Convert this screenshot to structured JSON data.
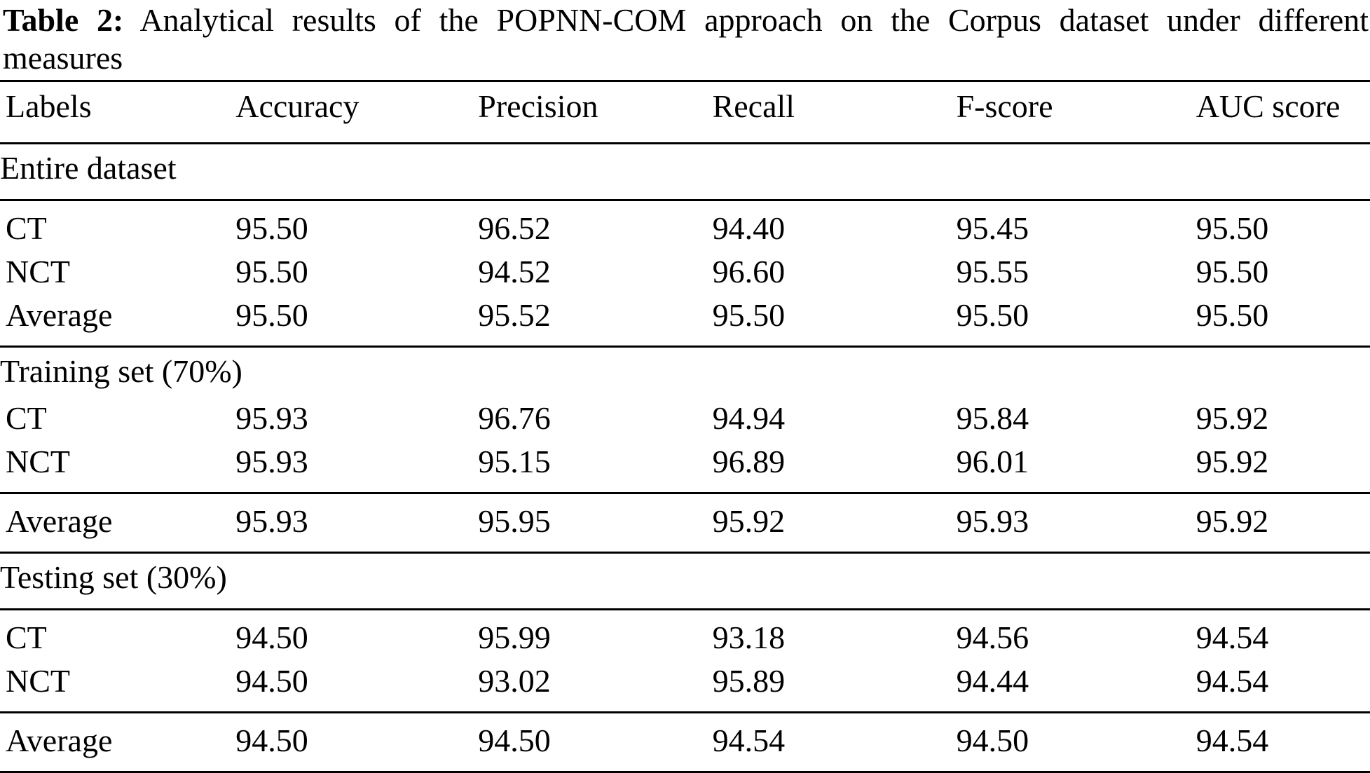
{
  "page": {
    "background": "#ffffff",
    "text_color": "#000000"
  },
  "caption": {
    "prefix": "Table 2:",
    "line1_rest": "Analytical results of the POPNN-COM approach on the Corpus dataset under different",
    "line2": "measures"
  },
  "table": {
    "columns": [
      "Labels",
      "Accuracy",
      "Precision",
      "Recall",
      "F-score",
      "AUC score"
    ],
    "sections": [
      {
        "name": "Entire dataset",
        "rule_below_name": true,
        "rows": [
          {
            "label": "CT",
            "values": [
              "95.50",
              "96.52",
              "94.40",
              "95.45",
              "95.50"
            ],
            "rule_below": false
          },
          {
            "label": "NCT",
            "values": [
              "95.50",
              "94.52",
              "96.60",
              "95.55",
              "95.50"
            ],
            "rule_below": false
          },
          {
            "label": "Average",
            "values": [
              "95.50",
              "95.52",
              "95.50",
              "95.50",
              "95.50"
            ],
            "rule_below": true
          }
        ]
      },
      {
        "name": "Training set (70%)",
        "rule_below_name": false,
        "rows": [
          {
            "label": "CT",
            "values": [
              "95.93",
              "96.76",
              "94.94",
              "95.84",
              "95.92"
            ],
            "rule_below": false
          },
          {
            "label": "NCT",
            "values": [
              "95.93",
              "95.15",
              "96.89",
              "96.01",
              "95.92"
            ],
            "rule_below": true
          },
          {
            "label": "Average",
            "values": [
              "95.93",
              "95.95",
              "95.92",
              "95.93",
              "95.92"
            ],
            "rule_below": true
          }
        ]
      },
      {
        "name": "Testing set (30%)",
        "rule_below_name": true,
        "rows": [
          {
            "label": "CT",
            "values": [
              "94.50",
              "95.99",
              "93.18",
              "94.56",
              "94.54"
            ],
            "rule_below": false
          },
          {
            "label": "NCT",
            "values": [
              "94.50",
              "93.02",
              "95.89",
              "94.44",
              "94.54"
            ],
            "rule_below": true
          },
          {
            "label": "Average",
            "values": [
              "94.50",
              "94.50",
              "94.54",
              "94.50",
              "94.54"
            ],
            "rule_below": true
          }
        ]
      }
    ]
  }
}
